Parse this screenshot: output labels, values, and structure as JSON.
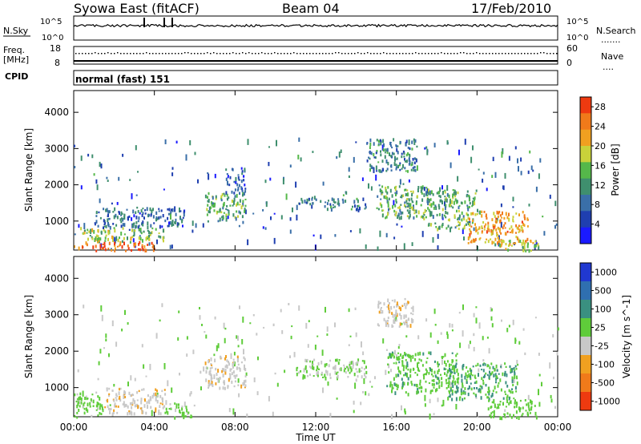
{
  "header": {
    "station": "Syowa East (fitACF)",
    "beam": "Beam 04",
    "date": "17/Feb/2010"
  },
  "status_panel": {
    "nsky_label": "N.Sky",
    "nsearch_label": "N.Search",
    "noise_ticks_left": [
      "10^5",
      "10^0"
    ],
    "noise_ticks_right": [
      "10^5",
      "10^0"
    ],
    "freq_label_line1": "Freq.",
    "freq_label_line2": "[MHz]",
    "freq_ticks": [
      "18",
      "8"
    ],
    "nave_label": "Nave",
    "nave_ticks": [
      "60",
      "0"
    ],
    "cpid_label": "CPID",
    "cpid_text": "normal (fast) 151"
  },
  "colors": {
    "power_scale": [
      "#1a1aff",
      "#1f3fb0",
      "#3a6fa8",
      "#3f8f6e",
      "#55b84a",
      "#c9d23a",
      "#f0a020",
      "#f07a1a",
      "#ee3a10"
    ],
    "velocity_scale": [
      "#2038d0",
      "#2f6fb0",
      "#3a9080",
      "#5fcc3a",
      "#c8c8c8",
      "#f0a020",
      "#f07a1a",
      "#ee3a10"
    ],
    "accent": "#000000"
  },
  "chart_data": [
    {
      "type": "heatmap",
      "name": "power",
      "xlabel": "Time UT",
      "ylabel": "Slant Range [km]",
      "x_ticks": [
        "00:00",
        "04:00",
        "08:00",
        "12:00",
        "16:00",
        "20:00",
        "00:00"
      ],
      "xlim_hours": [
        0,
        24
      ],
      "y_ticks": [
        1000,
        2000,
        3000,
        4000
      ],
      "ylim": [
        200,
        4600
      ],
      "colorbar": {
        "label": "Power [dB]",
        "ticks": [
          4,
          8,
          12,
          16,
          20,
          24,
          28
        ],
        "range": [
          0,
          30
        ]
      },
      "regions": [
        {
          "t0": 0.0,
          "t1": 4.0,
          "r0": 200,
          "r1": 450,
          "value": 26
        },
        {
          "t0": 0.3,
          "t1": 4.5,
          "r0": 450,
          "r1": 850,
          "value": 16
        },
        {
          "t0": 1.0,
          "t1": 5.5,
          "r0": 850,
          "r1": 1400,
          "value": 8
        },
        {
          "t0": 6.5,
          "t1": 8.5,
          "r0": 1000,
          "r1": 1800,
          "value": 14
        },
        {
          "t0": 7.5,
          "t1": 8.5,
          "r0": 1800,
          "r1": 2500,
          "value": 6
        },
        {
          "t0": 11.0,
          "t1": 12.5,
          "r0": 1500,
          "r1": 1700,
          "value": 8
        },
        {
          "t0": 12.5,
          "t1": 14.5,
          "r0": 1350,
          "r1": 1650,
          "value": 10
        },
        {
          "t0": 14.5,
          "t1": 17.0,
          "r0": 2400,
          "r1": 3300,
          "value": 10
        },
        {
          "t0": 15.0,
          "t1": 17.5,
          "r0": 1100,
          "r1": 2000,
          "value": 14
        },
        {
          "t0": 17.5,
          "t1": 20.0,
          "r0": 800,
          "r1": 1900,
          "value": 14
        },
        {
          "t0": 19.5,
          "t1": 22.5,
          "r0": 400,
          "r1": 1300,
          "value": 22
        },
        {
          "t0": 21.0,
          "t1": 23.0,
          "r0": 200,
          "r1": 500,
          "value": 18
        }
      ]
    },
    {
      "type": "heatmap",
      "name": "velocity",
      "xlabel": "Time UT",
      "ylabel": "Slant Range [km]",
      "x_ticks": [
        "00:00",
        "04:00",
        "08:00",
        "12:00",
        "16:00",
        "20:00",
        "00:00"
      ],
      "xlim_hours": [
        0,
        24
      ],
      "y_ticks": [
        1000,
        2000,
        3000,
        4000
      ],
      "ylim": [
        200,
        4600
      ],
      "colorbar": {
        "label": "Velocity [m s^-1]",
        "ticks": [
          "1000",
          "500",
          "100",
          "25",
          "-25",
          "-100",
          "-500",
          "-1000"
        ],
        "range": [
          -1200,
          1200
        ]
      },
      "regions": [
        {
          "t0": 0.0,
          "t1": 1.5,
          "r0": 200,
          "r1": 900,
          "value": 100
        },
        {
          "t0": 1.5,
          "t1": 4.5,
          "r0": 300,
          "r1": 1000,
          "value": -200
        },
        {
          "t0": 4.5,
          "t1": 6.0,
          "r0": 200,
          "r1": 600,
          "value": 80
        },
        {
          "t0": 6.5,
          "t1": 8.5,
          "r0": 1000,
          "r1": 1900,
          "value": -200
        },
        {
          "t0": 11.0,
          "t1": 14.5,
          "r0": 1300,
          "r1": 1800,
          "value": 0
        },
        {
          "t0": 15.0,
          "t1": 16.8,
          "r0": 2700,
          "r1": 3500,
          "value": -200
        },
        {
          "t0": 15.5,
          "t1": 19.0,
          "r0": 900,
          "r1": 2000,
          "value": 200
        },
        {
          "t0": 18.5,
          "t1": 22.0,
          "r0": 700,
          "r1": 1700,
          "value": 300
        },
        {
          "t0": 20.5,
          "t1": 23.0,
          "r0": 200,
          "r1": 700,
          "value": 150
        }
      ]
    }
  ]
}
